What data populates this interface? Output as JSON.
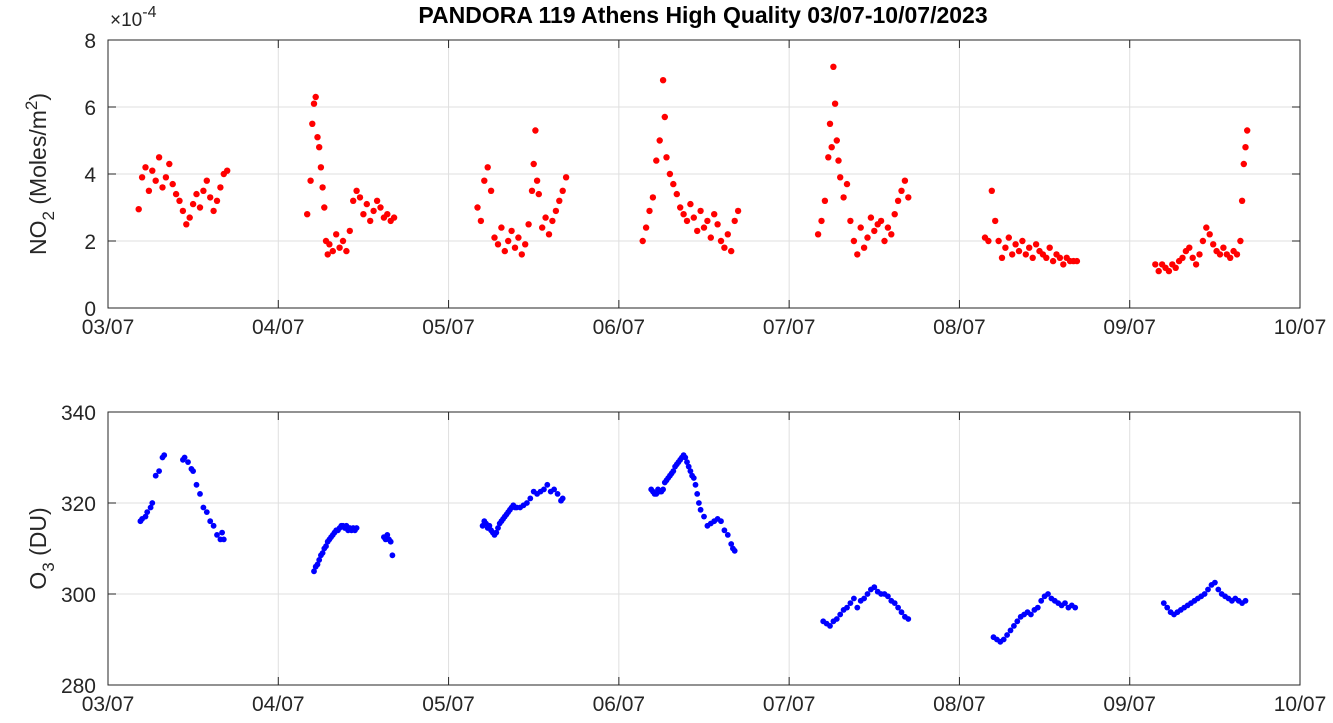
{
  "title": "PANDORA 119 Athens High Quality 03/07-10/07/2023",
  "chart_data": [
    {
      "type": "scatter",
      "x_label": "",
      "x_ticks": [
        "03/07",
        "04/07",
        "05/07",
        "06/07",
        "07/07",
        "08/07",
        "09/07",
        "10/07"
      ],
      "y_label_main": "NO",
      "y_label_sub": "2",
      "y_label_rest": " (Moles/m",
      "y_label_sup": "2",
      "y_label_end": ")",
      "exponent_base": "×10",
      "exponent_power": "-4",
      "xlim": [
        0,
        7
      ],
      "ylim": [
        0,
        8
      ],
      "y_ticks": [
        0,
        2,
        4,
        6,
        8
      ],
      "grid": true,
      "color": "#ff0000",
      "series": [
        {
          "x": [
            0.18,
            0.2,
            0.22,
            0.24,
            0.26,
            0.28,
            0.3,
            0.32,
            0.34,
            0.36,
            0.38,
            0.4,
            0.42,
            0.44,
            0.46,
            0.48,
            0.5,
            0.52,
            0.54,
            0.56,
            0.58,
            0.6,
            0.62,
            0.64,
            0.66,
            0.68,
            0.7,
            1.17,
            1.19,
            1.2,
            1.21,
            1.22,
            1.23,
            1.24,
            1.25,
            1.26,
            1.27,
            1.28,
            1.29,
            1.3,
            1.32,
            1.34,
            1.36,
            1.38,
            1.4,
            1.42,
            1.44,
            1.46,
            1.48,
            1.5,
            1.52,
            1.54,
            1.56,
            1.58,
            1.6,
            1.62,
            1.64,
            1.66,
            1.68,
            2.17,
            2.19,
            2.21,
            2.23,
            2.25,
            2.27,
            2.29,
            2.31,
            2.33,
            2.35,
            2.37,
            2.39,
            2.41,
            2.43,
            2.45,
            2.47,
            2.49,
            2.5,
            2.51,
            2.52,
            2.53,
            2.55,
            2.57,
            2.59,
            2.61,
            2.63,
            2.65,
            2.67,
            2.69,
            3.14,
            3.16,
            3.18,
            3.2,
            3.22,
            3.24,
            3.26,
            3.27,
            3.28,
            3.3,
            3.32,
            3.34,
            3.36,
            3.38,
            3.4,
            3.42,
            3.44,
            3.46,
            3.48,
            3.5,
            3.52,
            3.54,
            3.56,
            3.58,
            3.6,
            3.62,
            3.64,
            3.66,
            3.68,
            3.7,
            4.17,
            4.19,
            4.21,
            4.23,
            4.24,
            4.25,
            4.26,
            4.27,
            4.28,
            4.29,
            4.3,
            4.32,
            4.34,
            4.36,
            4.38,
            4.4,
            4.42,
            4.44,
            4.46,
            4.48,
            4.5,
            4.52,
            4.54,
            4.56,
            4.58,
            4.6,
            4.62,
            4.64,
            4.66,
            4.68,
            4.7,
            5.15,
            5.17,
            5.19,
            5.21,
            5.23,
            5.25,
            5.27,
            5.29,
            5.31,
            5.33,
            5.35,
            5.37,
            5.39,
            5.41,
            5.43,
            5.45,
            5.47,
            5.49,
            5.51,
            5.53,
            5.55,
            5.57,
            5.59,
            5.61,
            5.63,
            5.65,
            5.67,
            5.69,
            6.15,
            6.17,
            6.19,
            6.21,
            6.23,
            6.25,
            6.27,
            6.29,
            6.31,
            6.33,
            6.35,
            6.37,
            6.39,
            6.41,
            6.43,
            6.45,
            6.47,
            6.49,
            6.51,
            6.53,
            6.55,
            6.57,
            6.59,
            6.61,
            6.63,
            6.65,
            6.66,
            6.67,
            6.68,
            6.69
          ],
          "y": [
            2.95,
            3.9,
            4.2,
            3.5,
            4.1,
            3.8,
            4.5,
            3.6,
            3.9,
            4.3,
            3.7,
            3.4,
            3.2,
            2.9,
            2.5,
            2.7,
            3.1,
            3.4,
            3.0,
            3.5,
            3.8,
            3.3,
            2.9,
            3.2,
            3.6,
            4.0,
            4.1,
            2.8,
            3.8,
            5.5,
            6.1,
            6.3,
            5.1,
            4.8,
            4.2,
            3.6,
            3.0,
            2.0,
            1.6,
            1.9,
            1.7,
            2.2,
            1.8,
            2.0,
            1.7,
            2.3,
            3.2,
            3.5,
            3.3,
            2.8,
            3.1,
            2.6,
            2.9,
            3.2,
            3.0,
            2.7,
            2.8,
            2.6,
            2.7,
            3.0,
            2.6,
            3.8,
            4.2,
            3.5,
            2.1,
            1.9,
            2.4,
            1.7,
            2.0,
            2.3,
            1.8,
            2.1,
            1.6,
            1.9,
            2.5,
            3.5,
            4.3,
            5.3,
            3.8,
            3.4,
            2.4,
            2.7,
            2.2,
            2.6,
            2.9,
            3.2,
            3.5,
            3.9,
            2.0,
            2.4,
            2.9,
            3.3,
            4.4,
            5.0,
            6.8,
            5.7,
            4.5,
            4.0,
            3.7,
            3.4,
            3.0,
            2.8,
            2.6,
            3.1,
            2.7,
            2.3,
            2.9,
            2.4,
            2.6,
            2.1,
            2.8,
            2.5,
            2.0,
            1.8,
            2.2,
            1.7,
            2.6,
            2.9,
            2.2,
            2.6,
            3.2,
            4.5,
            5.5,
            4.8,
            7.2,
            6.1,
            5.0,
            4.4,
            3.9,
            3.3,
            3.7,
            2.6,
            2.0,
            1.6,
            2.4,
            1.8,
            2.1,
            2.7,
            2.3,
            2.5,
            2.6,
            2.0,
            2.4,
            2.2,
            2.8,
            3.2,
            3.5,
            3.8,
            3.3,
            2.1,
            2.0,
            3.5,
            2.6,
            2.0,
            1.5,
            1.8,
            2.1,
            1.6,
            1.9,
            1.7,
            2.0,
            1.6,
            1.8,
            1.5,
            1.9,
            1.7,
            1.6,
            1.5,
            1.8,
            1.4,
            1.6,
            1.5,
            1.3,
            1.5,
            1.4,
            1.4,
            1.4,
            1.3,
            1.1,
            1.3,
            1.2,
            1.1,
            1.3,
            1.2,
            1.4,
            1.5,
            1.7,
            1.8,
            1.5,
            1.3,
            1.6,
            2.0,
            2.4,
            2.2,
            1.9,
            1.7,
            1.6,
            1.8,
            1.6,
            1.5,
            1.7,
            1.6,
            2.0,
            3.2,
            4.3,
            4.8,
            5.3
          ]
        }
      ]
    },
    {
      "type": "scatter",
      "x_ticks": [
        "03/07",
        "04/07",
        "05/07",
        "06/07",
        "07/07",
        "08/07",
        "09/07",
        "10/07"
      ],
      "y_label_main": "O",
      "y_label_sub": "3",
      "y_label_rest": " (DU)",
      "xlim": [
        0,
        7
      ],
      "ylim": [
        280,
        340
      ],
      "y_ticks": [
        280,
        300,
        320,
        340
      ],
      "grid": true,
      "color": "#0000ff",
      "series": [
        {
          "x": [
            0.19,
            0.2,
            0.22,
            0.23,
            0.25,
            0.26,
            0.28,
            0.3,
            0.32,
            0.33,
            0.44,
            0.45,
            0.47,
            0.49,
            0.5,
            0.52,
            0.54,
            0.56,
            0.58,
            0.6,
            0.62,
            0.64,
            0.66,
            0.67,
            0.68,
            1.21,
            1.22,
            1.23,
            1.24,
            1.25,
            1.26,
            1.27,
            1.28,
            1.29,
            1.3,
            1.31,
            1.32,
            1.33,
            1.34,
            1.35,
            1.36,
            1.37,
            1.38,
            1.39,
            1.4,
            1.41,
            1.42,
            1.43,
            1.44,
            1.45,
            1.46,
            1.62,
            1.63,
            1.64,
            1.65,
            1.66,
            1.67,
            2.2,
            2.21,
            2.22,
            2.23,
            2.24,
            2.25,
            2.26,
            2.27,
            2.28,
            2.29,
            2.3,
            2.31,
            2.32,
            2.33,
            2.34,
            2.35,
            2.36,
            2.37,
            2.38,
            2.39,
            2.4,
            2.42,
            2.44,
            2.46,
            2.48,
            2.5,
            2.52,
            2.54,
            2.56,
            2.58,
            2.6,
            2.62,
            2.64,
            2.66,
            2.67,
            3.19,
            3.2,
            3.21,
            3.22,
            3.23,
            3.24,
            3.25,
            3.26,
            3.27,
            3.28,
            3.29,
            3.3,
            3.31,
            3.32,
            3.33,
            3.34,
            3.35,
            3.36,
            3.37,
            3.38,
            3.39,
            3.4,
            3.41,
            3.42,
            3.43,
            3.44,
            3.45,
            3.46,
            3.47,
            3.48,
            3.5,
            3.52,
            3.54,
            3.56,
            3.58,
            3.6,
            3.62,
            3.64,
            3.66,
            3.67,
            3.68,
            4.2,
            4.22,
            4.24,
            4.26,
            4.28,
            4.3,
            4.32,
            4.34,
            4.36,
            4.38,
            4.4,
            4.42,
            4.44,
            4.46,
            4.48,
            4.5,
            4.52,
            4.54,
            4.56,
            4.58,
            4.6,
            4.62,
            4.64,
            4.66,
            4.68,
            4.7,
            5.2,
            5.22,
            5.24,
            5.26,
            5.28,
            5.3,
            5.32,
            5.34,
            5.36,
            5.38,
            5.4,
            5.42,
            5.44,
            5.46,
            5.48,
            5.5,
            5.52,
            5.54,
            5.56,
            5.58,
            5.6,
            5.62,
            5.64,
            5.66,
            5.68,
            6.2,
            6.22,
            6.24,
            6.26,
            6.28,
            6.3,
            6.32,
            6.34,
            6.36,
            6.38,
            6.4,
            6.42,
            6.44,
            6.46,
            6.48,
            6.5,
            6.52,
            6.54,
            6.56,
            6.58,
            6.6,
            6.62,
            6.64,
            6.66,
            6.68
          ],
          "y": [
            316,
            316.5,
            317,
            318,
            319,
            320,
            326,
            327,
            330,
            330.5,
            329.5,
            330,
            329,
            327.5,
            327,
            324,
            322,
            319,
            318,
            316,
            315,
            313,
            312,
            313.5,
            312,
            305,
            306,
            306.5,
            307.5,
            308.5,
            309,
            310,
            310.5,
            311.5,
            312,
            312.5,
            313,
            313.5,
            314,
            314,
            314.5,
            315,
            315,
            314.5,
            315,
            314,
            314.5,
            314,
            314.5,
            314,
            314.5,
            312.5,
            312,
            313,
            312,
            311.5,
            308.5,
            315,
            316,
            315.5,
            314.5,
            315,
            314,
            313.5,
            313,
            313.5,
            314.5,
            315.5,
            316,
            316.5,
            317,
            317.5,
            318,
            318.5,
            319,
            319.5,
            319,
            319,
            319,
            319.5,
            320,
            321,
            322.5,
            322,
            322.5,
            323,
            324,
            322.5,
            323,
            322,
            320.5,
            321,
            323,
            322.5,
            322,
            322,
            323,
            322.5,
            322.5,
            323,
            324.5,
            325,
            325.5,
            326,
            326.5,
            327,
            328,
            328.5,
            329,
            329.5,
            330,
            330.5,
            330,
            329,
            328,
            327,
            326,
            325.5,
            324,
            322,
            320,
            318.5,
            317,
            315,
            315.5,
            316,
            316.5,
            316,
            314,
            313,
            311,
            310,
            309.5,
            294,
            293.5,
            293,
            294,
            294.5,
            295.5,
            296.5,
            297,
            298,
            299,
            297,
            298.5,
            299,
            300,
            301,
            301.5,
            300.5,
            300,
            300,
            299.5,
            298.5,
            298,
            297,
            296,
            295,
            294.5,
            290.5,
            290,
            289.5,
            290,
            291,
            292,
            293,
            294,
            295,
            295.5,
            296,
            295.5,
            296.5,
            297,
            298.5,
            299.5,
            300,
            299,
            298.5,
            298,
            297.5,
            298,
            297,
            297.5,
            297,
            298,
            297,
            296,
            295.5,
            296,
            296.5,
            297,
            297.5,
            298,
            298.5,
            299,
            299.5,
            300,
            301,
            302,
            302.5,
            301,
            300,
            299.5,
            299,
            298.5,
            299,
            298.5,
            298,
            298.5
          ]
        }
      ]
    }
  ]
}
